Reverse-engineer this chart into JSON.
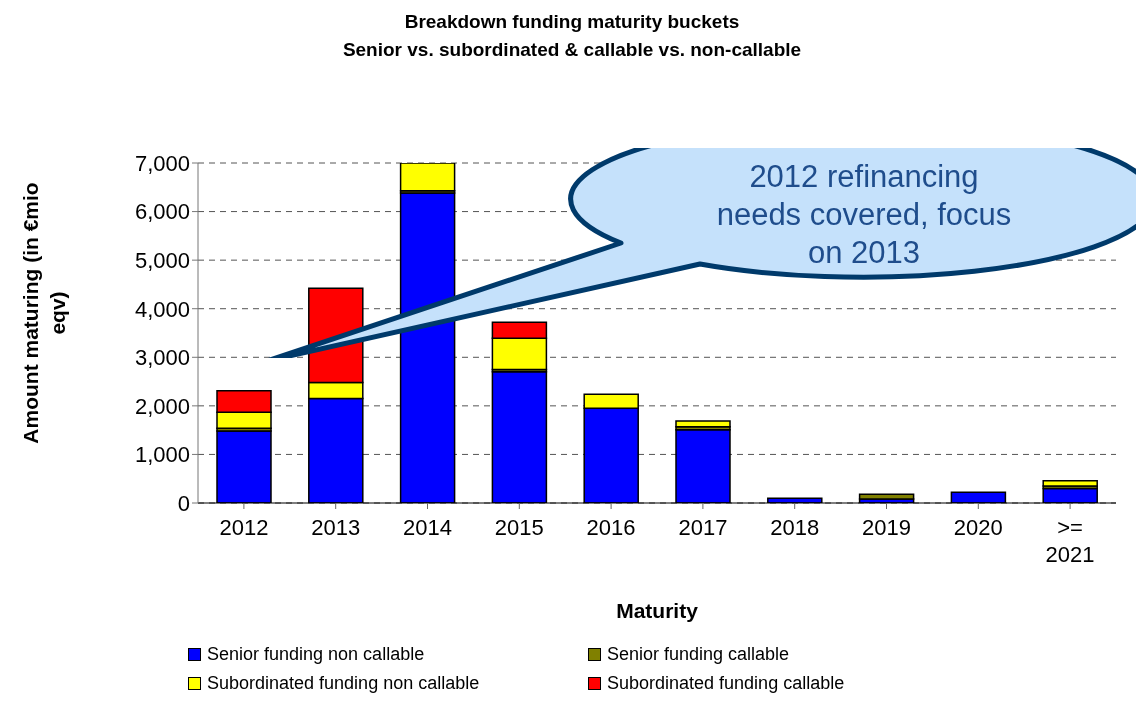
{
  "chart_data": {
    "type": "bar",
    "title": "Breakdown funding maturity buckets",
    "subtitle": "Senior vs. subordinated & callable vs. non-callable",
    "xlabel": "Maturity",
    "ylabel": "Amount maturing (in €mio eqv)",
    "categories": [
      "2012",
      "2013",
      "2014",
      "2015",
      "2016",
      "2017",
      "2018",
      "2019",
      "2020",
      ">= 2021"
    ],
    "series": [
      {
        "name": "Senior funding non callable",
        "color": "#0000ff",
        "values": [
          1480,
          2150,
          6380,
          2700,
          1950,
          1510,
          100,
          80,
          220,
          300
        ]
      },
      {
        "name": "Senior funding callable",
        "color": "#808000",
        "values": [
          60,
          0,
          50,
          50,
          0,
          60,
          0,
          100,
          0,
          50
        ]
      },
      {
        "name": "Subordinated funding non callable",
        "color": "#ffff00",
        "values": [
          330,
          330,
          570,
          640,
          290,
          120,
          0,
          0,
          0,
          110
        ]
      },
      {
        "name": "Subordinated funding callable",
        "color": "#ff0000",
        "values": [
          440,
          1940,
          0,
          330,
          0,
          0,
          0,
          0,
          0,
          0
        ]
      }
    ],
    "stacked": true,
    "ylim": [
      0,
      7000
    ],
    "yticks": [
      {
        "value": 0,
        "label": "0"
      },
      {
        "value": 1000,
        "label": "1,000"
      },
      {
        "value": 2000,
        "label": "2,000"
      },
      {
        "value": 3000,
        "label": "3,000"
      },
      {
        "value": 4000,
        "label": "4,000"
      },
      {
        "value": 5000,
        "label": "5,000"
      },
      {
        "value": 6000,
        "label": "6,000"
      },
      {
        "value": 7000,
        "label": "7,000"
      }
    ],
    "grid": "y",
    "legend": "bottom",
    "annotations": [
      "2012 refinancing needs covered, focus on 2013"
    ]
  }
}
